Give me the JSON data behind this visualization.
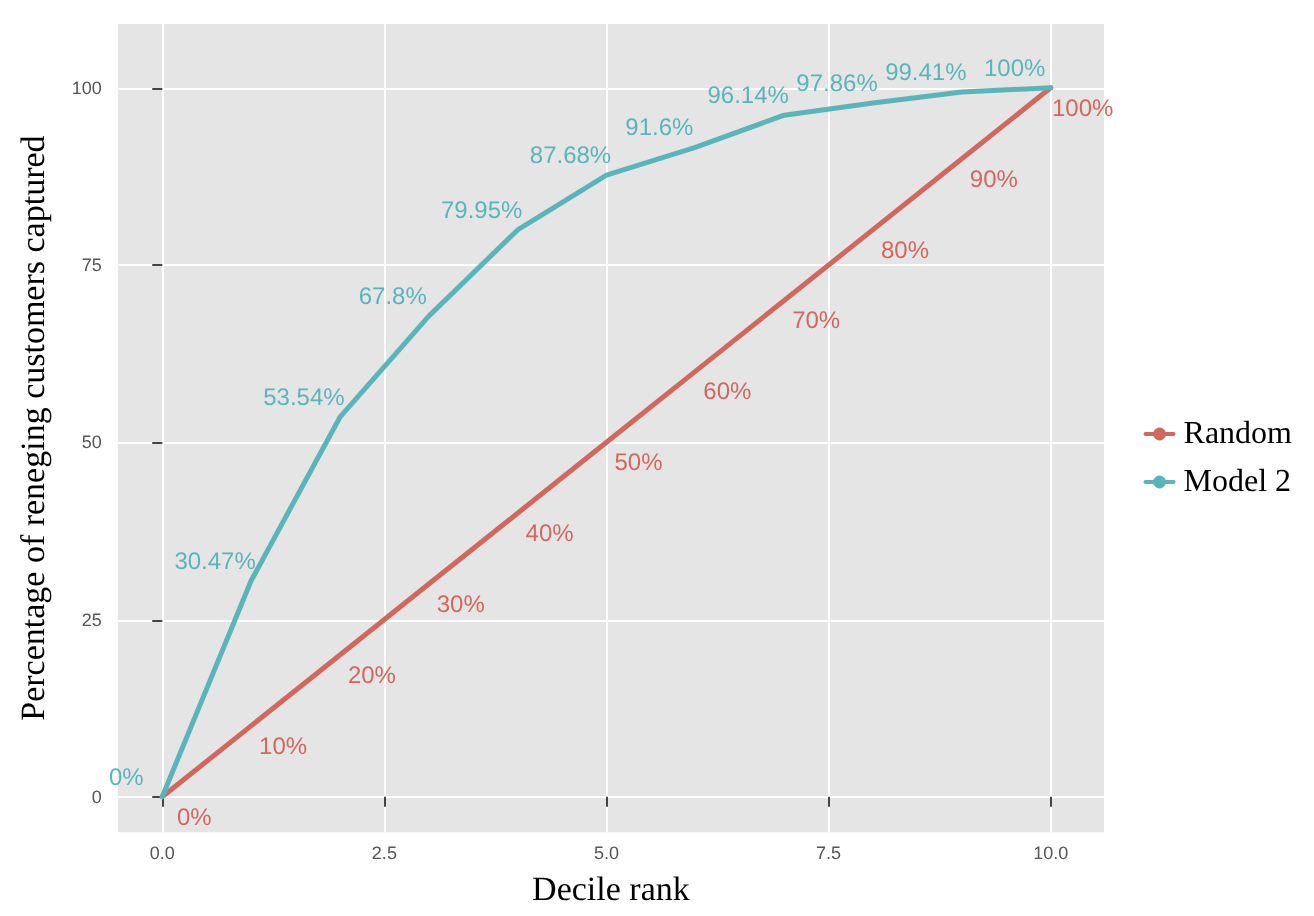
{
  "chart_data": {
    "type": "line",
    "xlabel": "Decile rank",
    "ylabel": "Percentage of reneging customers captured",
    "x": [
      0,
      1,
      2,
      3,
      4,
      5,
      6,
      7,
      8,
      9,
      10
    ],
    "series": [
      {
        "name": "Random",
        "color": "#d2675e",
        "values": [
          0,
          10,
          20,
          30,
          40,
          50,
          60,
          70,
          80,
          90,
          100
        ],
        "value_labels": [
          "0%",
          "10%",
          "20%",
          "30%",
          "40%",
          "50%",
          "60%",
          "70%",
          "80%",
          "90%",
          "100%"
        ]
      },
      {
        "name": "Model 2",
        "color": "#5ab5bb",
        "values": [
          0,
          30.47,
          53.54,
          67.8,
          79.95,
          87.68,
          91.6,
          96.14,
          97.86,
          99.41,
          100
        ],
        "value_labels": [
          "0%",
          "30.47%",
          "53.54%",
          "67.8%",
          "79.95%",
          "87.68%",
          "91.6%",
          "96.14%",
          "97.86%",
          "99.41%",
          "100%"
        ]
      }
    ],
    "xlim": [
      -0.5,
      10.6
    ],
    "ylim": [
      -5,
      109
    ],
    "xticks": [
      {
        "value": 0,
        "label": "0.0"
      },
      {
        "value": 2.5,
        "label": "2.5"
      },
      {
        "value": 5,
        "label": "5.0"
      },
      {
        "value": 7.5,
        "label": "7.5"
      },
      {
        "value": 10,
        "label": "10.0"
      }
    ],
    "yticks": [
      0,
      25,
      50,
      75,
      100
    ],
    "grid": true,
    "legend": "right",
    "marker": "none",
    "line_style": "solid"
  }
}
